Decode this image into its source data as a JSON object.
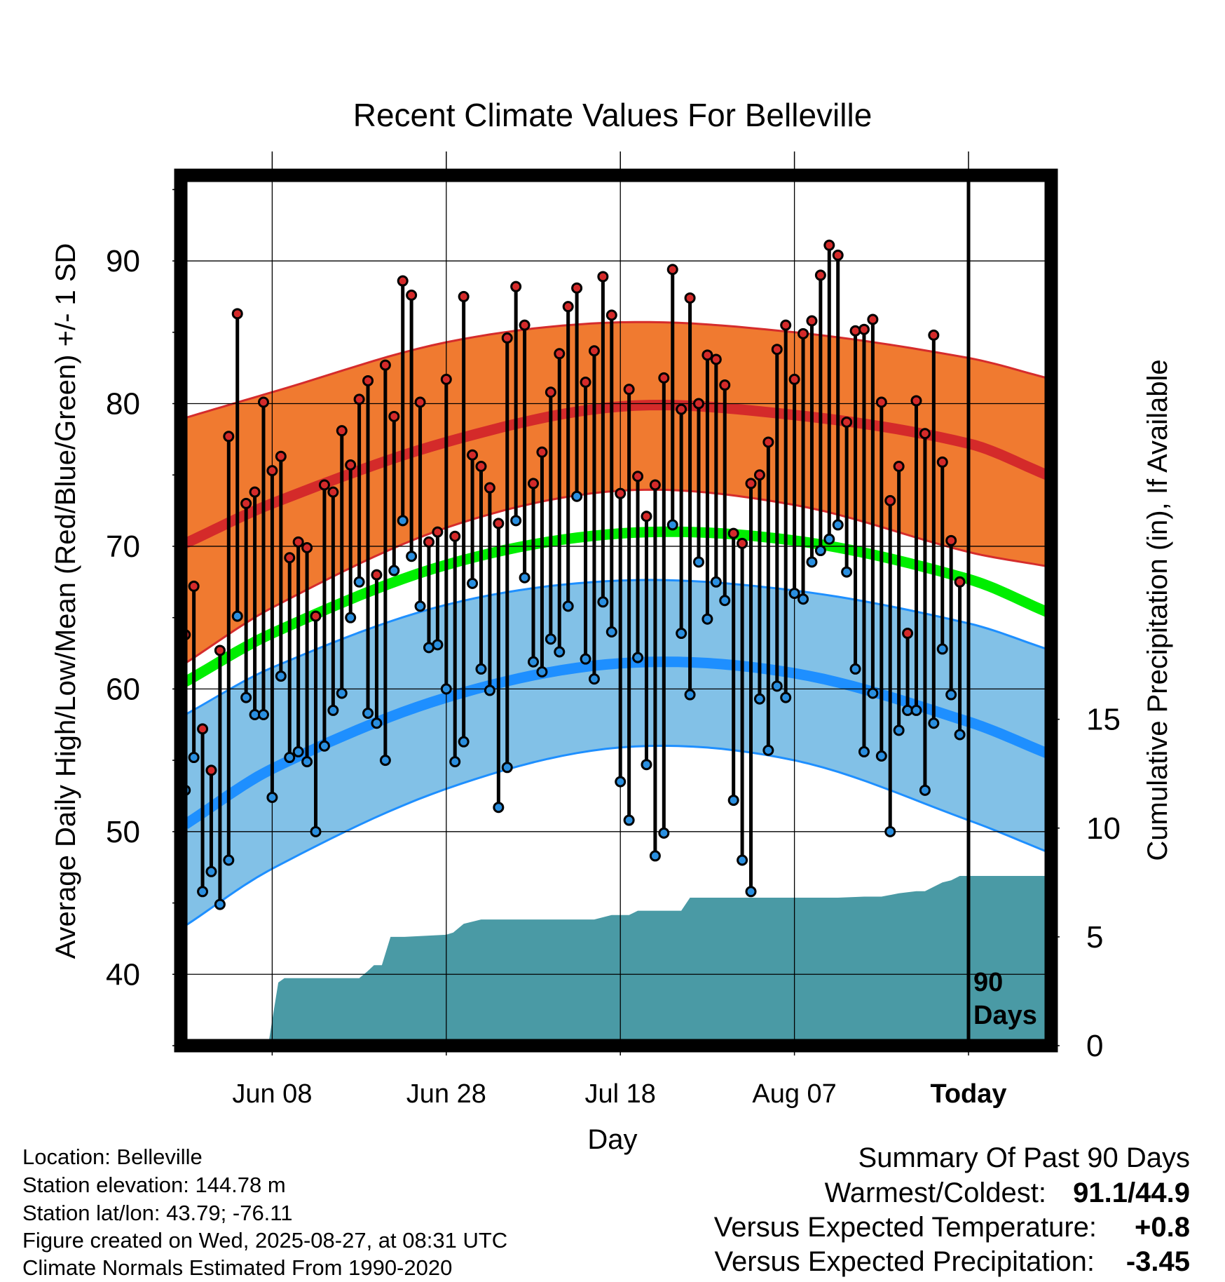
{
  "chart_data": {
    "type": "line",
    "title": "Recent Climate Values For Belleville",
    "xlabel": "Day",
    "ylabel": "Average Daily High/Low/Mean (Red/Blue/Green) +/- 1 SD",
    "y2label": "Cumulative Precipitation (in), If Available",
    "ylim": [
      35,
      96
    ],
    "y2lim": [
      0,
      40
    ],
    "y_ticks": [
      "40",
      "50",
      "60",
      "70",
      "80",
      "90"
    ],
    "y2_ticks": [
      "0",
      "5",
      "10",
      "15"
    ],
    "x_tick_labels": [
      "Jun 08",
      "Jun 28",
      "Jul 18",
      "Aug 07",
      "Today"
    ],
    "x_tick_days": [
      -80,
      -60,
      -40,
      -20,
      0
    ],
    "xlim": [
      -90.5,
      9.5
    ],
    "today_marker": "90\nDays",
    "grid": true,
    "colors": {
      "high_band": "#f07a30",
      "high_band_edge": "#d52c2c",
      "high_mean": "#d42a2a",
      "low_band": "#82c1e7",
      "low_band_edge": "#1e8fff",
      "low_mean": "#1e8fff",
      "mean": "#00ee00",
      "precip": "#4a9aa5",
      "high_dot": "#d42a2a",
      "low_dot": "#2a8fe0"
    },
    "normals": {
      "days": [
        -90,
        -80,
        -60,
        -40,
        -20,
        0,
        9
      ],
      "high_mean": [
        70.2,
        73.0,
        77.3,
        79.8,
        79.2,
        77.2,
        75.0
      ],
      "high_upper": [
        79.0,
        80.8,
        84.3,
        85.7,
        85.0,
        83.2,
        81.8
      ],
      "high_lower": [
        61.8,
        65.7,
        71.3,
        73.9,
        72.9,
        69.6,
        68.6
      ],
      "mean": [
        60.5,
        63.9,
        68.7,
        70.9,
        70.4,
        67.7,
        65.4
      ],
      "low_mean": [
        50.5,
        54.4,
        59.4,
        61.8,
        61.1,
        57.7,
        55.5
      ],
      "low_upper": [
        58.2,
        61.5,
        65.9,
        67.6,
        66.9,
        64.6,
        62.8
      ],
      "low_lower": [
        43.4,
        47.4,
        53.0,
        55.9,
        55.0,
        50.8,
        48.6
      ]
    },
    "series": [
      {
        "name": "High",
        "x": [
          -90,
          -89,
          -88,
          -87,
          -86,
          -85,
          -84,
          -83,
          -82,
          -81,
          -80,
          -79,
          -78,
          -77,
          -76,
          -75,
          -74,
          -73,
          -72,
          -71,
          -70,
          -69,
          -68,
          -67,
          -66,
          -65,
          -64,
          -63,
          -62,
          -61,
          -60,
          -59,
          -58,
          -57,
          -56,
          -55,
          -54,
          -53,
          -52,
          -51,
          -50,
          -49,
          -48,
          -47,
          -46,
          -45,
          -44,
          -43,
          -42,
          -41,
          -40,
          -39,
          -38,
          -37,
          -36,
          -35,
          -34,
          -33,
          -32,
          -31,
          -30,
          -29,
          -28,
          -27,
          -26,
          -25,
          -24,
          -23,
          -22,
          -21,
          -20,
          -19,
          -18,
          -17,
          -16,
          -15,
          -14,
          -13,
          -12,
          -11,
          -10,
          -9,
          -8,
          -7,
          -6,
          -5,
          -4,
          -3,
          -2,
          -1
        ],
        "values": [
          63.8,
          67.2,
          57.2,
          54.3,
          62.7,
          77.7,
          86.3,
          73.0,
          73.8,
          80.1,
          75.3,
          76.3,
          69.2,
          70.3,
          69.9,
          65.1,
          74.3,
          73.8,
          78.1,
          75.7,
          80.3,
          81.6,
          68.0,
          82.7,
          79.1,
          88.6,
          87.6,
          80.1,
          70.3,
          71.0,
          81.7,
          70.7,
          87.5,
          76.4,
          75.6,
          74.1,
          71.6,
          84.6,
          88.2,
          85.5,
          74.4,
          76.6,
          80.8,
          83.5,
          86.8,
          88.1,
          81.5,
          83.7,
          88.9,
          86.2,
          73.7,
          81.0,
          74.9,
          72.1,
          74.3,
          81.8,
          89.4,
          79.6,
          87.4,
          80.0,
          83.4,
          83.1,
          81.3,
          70.9,
          70.2,
          74.4,
          75.0,
          77.3,
          83.8,
          85.5,
          81.7,
          84.9,
          85.8,
          89.0,
          91.1,
          90.4,
          78.7,
          85.1,
          85.2,
          85.9,
          80.1,
          73.2,
          75.6,
          63.9,
          80.2,
          77.9,
          84.8,
          75.9,
          70.4,
          67.5
        ]
      },
      {
        "name": "Low",
        "x": [
          -90,
          -89,
          -88,
          -87,
          -86,
          -85,
          -84,
          -83,
          -82,
          -81,
          -80,
          -79,
          -78,
          -77,
          -76,
          -75,
          -74,
          -73,
          -72,
          -71,
          -70,
          -69,
          -68,
          -67,
          -66,
          -65,
          -64,
          -63,
          -62,
          -61,
          -60,
          -59,
          -58,
          -57,
          -56,
          -55,
          -54,
          -53,
          -52,
          -51,
          -50,
          -49,
          -48,
          -47,
          -46,
          -45,
          -44,
          -43,
          -42,
          -41,
          -40,
          -39,
          -38,
          -37,
          -36,
          -35,
          -34,
          -33,
          -32,
          -31,
          -30,
          -29,
          -28,
          -27,
          -26,
          -25,
          -24,
          -23,
          -22,
          -21,
          -20,
          -19,
          -18,
          -17,
          -16,
          -15,
          -14,
          -13,
          -12,
          -11,
          -10,
          -9,
          -8,
          -7,
          -6,
          -5,
          -4,
          -3,
          -2,
          -1
        ],
        "values": [
          52.9,
          55.2,
          45.8,
          47.2,
          44.9,
          48.0,
          65.1,
          59.4,
          58.2,
          58.2,
          52.4,
          60.9,
          55.2,
          55.6,
          54.9,
          50.0,
          56.0,
          58.5,
          59.7,
          65.0,
          67.5,
          58.3,
          57.6,
          55.0,
          68.3,
          71.8,
          69.3,
          65.8,
          62.9,
          63.1,
          60.0,
          54.9,
          56.3,
          67.4,
          61.4,
          59.9,
          51.7,
          54.5,
          71.8,
          67.8,
          61.9,
          61.2,
          63.5,
          62.6,
          65.8,
          73.5,
          62.1,
          60.7,
          66.1,
          64.0,
          53.5,
          50.8,
          62.2,
          54.7,
          48.3,
          49.9,
          71.5,
          63.9,
          59.6,
          68.9,
          64.9,
          67.5,
          66.2,
          52.2,
          48.0,
          45.8,
          59.3,
          55.7,
          60.2,
          59.4,
          66.7,
          66.3,
          68.9,
          69.7,
          70.5,
          71.5,
          68.2,
          61.4,
          55.6,
          59.7,
          55.3,
          50.0,
          57.1,
          58.5,
          58.5,
          52.9,
          57.6,
          62.8,
          59.6,
          56.8
        ]
      },
      {
        "name": "Cumulative Precipitation",
        "x": [
          -90,
          -80,
          -80.4,
          -79.3,
          -78.6,
          -70,
          -69.1,
          -68.3,
          -67.4,
          -66.4,
          -64.8,
          -60,
          -59.2,
          -58,
          -56,
          -50,
          -45,
          -43,
          -41,
          -39,
          -38,
          -35,
          -33,
          -32,
          -30,
          -25,
          -20,
          -15,
          -12,
          -10,
          -8,
          -6,
          -5,
          -4,
          -3,
          -2,
          -1,
          0,
          9
        ],
        "values": [
          0,
          0.2,
          0.15,
          2.9,
          3.1,
          3.1,
          3.4,
          3.7,
          3.7,
          5.0,
          5.0,
          5.1,
          5.2,
          5.6,
          5.8,
          5.8,
          5.8,
          5.8,
          6.0,
          6.0,
          6.2,
          6.2,
          6.2,
          6.8,
          6.8,
          6.8,
          6.8,
          6.8,
          6.85,
          6.85,
          7.0,
          7.1,
          7.1,
          7.3,
          7.5,
          7.6,
          7.8,
          7.8,
          7.8
        ]
      }
    ]
  },
  "info": {
    "location": "Location: Belleville",
    "elevation": "Station elevation: 144.78 m",
    "latlon": "Station lat/lon: 43.79; -76.11",
    "created": "Figure created on Wed, 2025-08-27, at 08:31 UTC",
    "normals": "Climate Normals Estimated From 1990-2020"
  },
  "summary": {
    "heading": "Summary Of Past 90 Days",
    "warm_cold_label": "Warmest/Coldest:",
    "warm_cold_value": "91.1/44.9",
    "temp_label": "Versus Expected Temperature:",
    "temp_value": "+0.8",
    "temp_color": "#d42a2a",
    "precip_label": "Versus Expected Precipitation:",
    "precip_value": "-3.45",
    "precip_color": "#a0522d"
  }
}
